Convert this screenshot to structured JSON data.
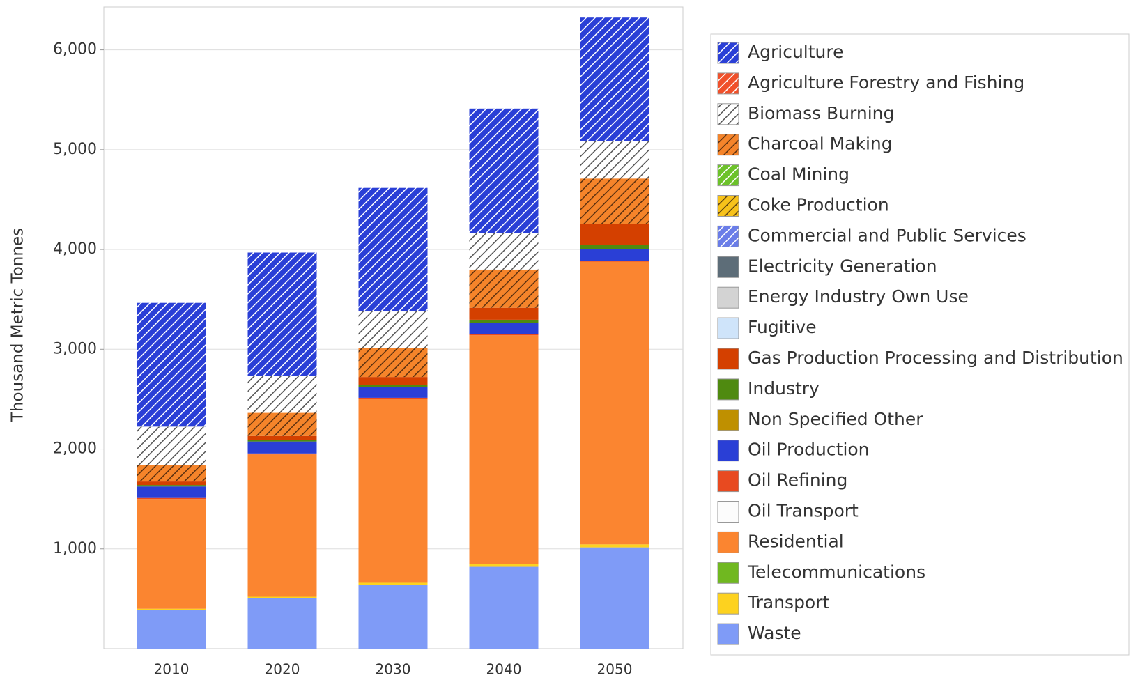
{
  "chart_data": {
    "type": "stacked_bar",
    "y_label": "Thousand Metric Tonnes",
    "categories": [
      "2010",
      "2020",
      "2030",
      "2040",
      "2050"
    ],
    "ylim": [
      0,
      6430
    ],
    "yticks": [
      {
        "value": 1000,
        "label": "1,000"
      },
      {
        "value": 2000,
        "label": "2,000"
      },
      {
        "value": 3000,
        "label": "3,000"
      },
      {
        "value": 4000,
        "label": "4,000"
      },
      {
        "value": 5000,
        "label": "5,000"
      },
      {
        "value": 6000,
        "label": "6,000"
      }
    ],
    "grid": true,
    "legend": "right",
    "series": [
      {
        "name": "Agriculture",
        "color": "#2a3fd6",
        "hatch": true,
        "hatch_color": "#ffffff",
        "values": [
          1240,
          1237,
          1238,
          1244,
          1237
        ]
      },
      {
        "name": "Agriculture Forestry and Fishing",
        "color": "#f0502a",
        "hatch": true,
        "hatch_color": "#ffffff",
        "values": [
          0,
          0,
          0,
          0,
          0
        ]
      },
      {
        "name": "Biomass Burning",
        "color": "#ffffff",
        "hatch": true,
        "hatch_color": "#555555",
        "values": [
          385,
          369,
          369,
          369,
          376
        ]
      },
      {
        "name": "Charcoal Making",
        "color": "#f5842a",
        "hatch": true,
        "hatch_color": "#5a3010",
        "values": [
          165,
          232,
          288,
          383,
          457
        ]
      },
      {
        "name": "Coal Mining",
        "color": "#6cc22a",
        "hatch": true,
        "hatch_color": "#ffffff",
        "values": [
          0,
          0,
          0,
          0,
          0
        ]
      },
      {
        "name": "Coke Production",
        "color": "#f7c21a",
        "hatch": true,
        "hatch_color": "#5a4010",
        "values": [
          0,
          0,
          0,
          0,
          0
        ]
      },
      {
        "name": "Commercial and Public Services",
        "color": "#6a7de8",
        "hatch": true,
        "hatch_color": "#ffffff",
        "values": [
          0,
          0,
          0,
          0,
          0
        ]
      },
      {
        "name": "Electricity Generation",
        "color": "#5d6d78",
        "values": [
          0,
          0,
          0,
          0,
          0
        ]
      },
      {
        "name": "Energy Industry Own Use",
        "color": "#d3d3d3",
        "values": [
          0,
          0,
          0,
          0,
          0
        ]
      },
      {
        "name": "Fugitive",
        "color": "#cfe4fa",
        "values": [
          0,
          0,
          0,
          0,
          0
        ]
      },
      {
        "name": "Gas Production Processing and Distribution",
        "color": "#d44000",
        "values": [
          35,
          40,
          80,
          120,
          210
        ]
      },
      {
        "name": "Industry",
        "color": "#4f8a10",
        "values": [
          15,
          15,
          20,
          30,
          40
        ]
      },
      {
        "name": "Non Specified Other",
        "color": "#bf9000",
        "values": [
          0,
          0,
          0,
          0,
          0
        ]
      },
      {
        "name": "Oil Production",
        "color": "#2a3fd6",
        "values": [
          115,
          120,
          108,
          116,
          116
        ]
      },
      {
        "name": "Oil Refining",
        "color": "#e84a20",
        "values": [
          10,
          10,
          10,
          10,
          10
        ]
      },
      {
        "name": "Oil Transport",
        "color": "#fcfcfc",
        "values": [
          0,
          0,
          0,
          0,
          0
        ]
      },
      {
        "name": "Residential",
        "color": "#fb8530",
        "values": [
          1100,
          1426,
          1844,
          2295,
          2833
        ]
      },
      {
        "name": "Telecommunications",
        "color": "#70b820",
        "values": [
          0,
          0,
          0,
          0,
          0
        ]
      },
      {
        "name": "Transport",
        "color": "#fdd21f",
        "values": [
          10,
          15,
          20,
          25,
          30
        ]
      },
      {
        "name": "Waste",
        "color": "#7f9bf7",
        "values": [
          390,
          505,
          640,
          820,
          1015
        ]
      }
    ]
  }
}
